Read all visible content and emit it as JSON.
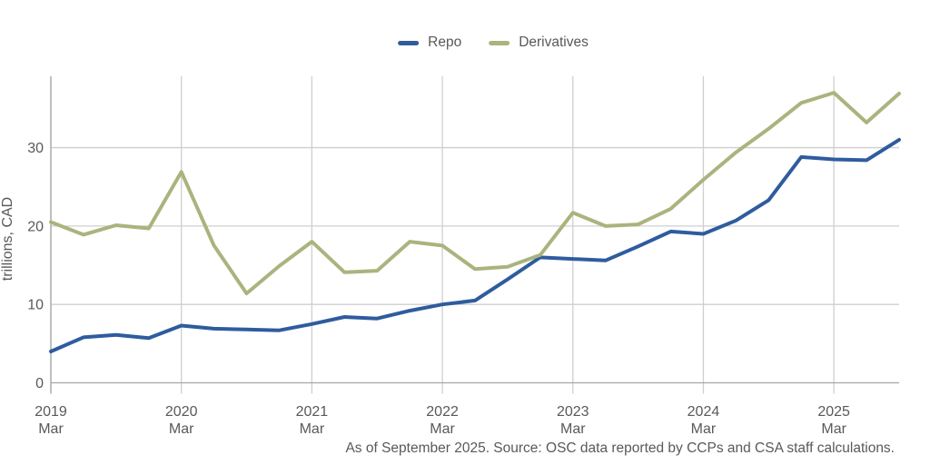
{
  "caption": "As of September 2025. Source: OSC data reported by CCPs and CSA staff calculations.",
  "chart_data": {
    "type": "line",
    "title": "",
    "xlabel": "",
    "ylabel": "trillions, CAD",
    "ylim": [
      0,
      39
    ],
    "grid": true,
    "legend_position": "top-center",
    "colors": {
      "grid": "#cfcfcf",
      "axis": "#a6a6a6",
      "text": "#595959"
    },
    "y_ticks": [
      0,
      10,
      20,
      30
    ],
    "x_ticks": [
      {
        "q": 0,
        "year": "2019",
        "month": "Mar"
      },
      {
        "q": 4,
        "year": "2020",
        "month": "Mar"
      },
      {
        "q": 8,
        "year": "2021",
        "month": "Mar"
      },
      {
        "q": 12,
        "year": "2022",
        "month": "Mar"
      },
      {
        "q": 16,
        "year": "2023",
        "month": "Mar"
      },
      {
        "q": 20,
        "year": "2024",
        "month": "Mar"
      },
      {
        "q": 24,
        "year": "2025",
        "month": "Mar"
      }
    ],
    "x": [
      "2019 Mar",
      "2019 Jun",
      "2019 Sep",
      "2019 Dec",
      "2020 Mar",
      "2020 Jun",
      "2020 Sep",
      "2020 Dec",
      "2021 Mar",
      "2021 Jun",
      "2021 Sep",
      "2021 Dec",
      "2022 Mar",
      "2022 Jun",
      "2022 Sep",
      "2022 Dec",
      "2023 Mar",
      "2023 Jun",
      "2023 Sep",
      "2023 Dec",
      "2024 Mar",
      "2024 Jun",
      "2024 Sep",
      "2024 Dec",
      "2025 Mar",
      "2025 Jun",
      "2025 Sep"
    ],
    "series": [
      {
        "name": "Repo",
        "color": "#2e5c9e",
        "values": [
          4.0,
          5.8,
          6.1,
          5.7,
          7.3,
          6.9,
          6.8,
          6.7,
          7.5,
          8.4,
          8.2,
          9.2,
          10.0,
          10.5,
          13.2,
          16.0,
          15.8,
          15.6,
          17.4,
          19.3,
          19.0,
          20.7,
          23.3,
          28.8,
          28.5,
          28.4,
          31.0
        ]
      },
      {
        "name": "Derivatives",
        "color": "#a9b47e",
        "values": [
          20.5,
          18.9,
          20.1,
          19.7,
          26.9,
          17.5,
          11.4,
          14.9,
          18.0,
          14.1,
          14.3,
          18.0,
          17.5,
          14.5,
          14.8,
          16.3,
          21.7,
          20.0,
          20.2,
          22.2,
          25.9,
          29.4,
          32.4,
          35.7,
          37.0,
          33.2,
          36.9
        ]
      }
    ]
  }
}
